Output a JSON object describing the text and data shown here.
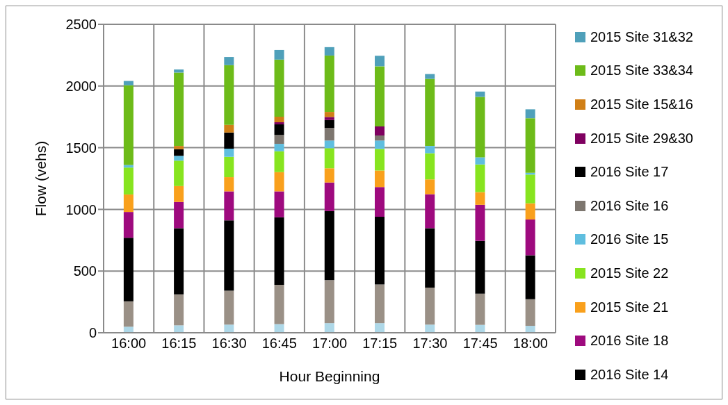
{
  "chart_data": {
    "type": "bar",
    "stacked": true,
    "xlabel": "Hour Beginning",
    "ylabel": "Flow (vehs)",
    "categories": [
      "16:00",
      "16:15",
      "16:30",
      "16:45",
      "17:00",
      "17:15",
      "17:30",
      "17:45",
      "18:00"
    ],
    "ylim": [
      0,
      2500
    ],
    "yticks": [
      0,
      500,
      1000,
      1500,
      2000,
      2500
    ],
    "grid": true,
    "legend": "right",
    "series": [
      {
        "color": "#aed8e8",
        "values": [
          49,
          60,
          66,
          70,
          78,
          78,
          66,
          64,
          56
        ]
      },
      {
        "color": "#9a9086",
        "values": [
          206,
          251,
          274,
          319,
          348,
          313,
          300,
          253,
          216
        ]
      },
      {
        "name": "2016 Site 14",
        "color": "#000000",
        "values": [
          515,
          537,
          571,
          547,
          560,
          549,
          482,
          428,
          356
        ]
      },
      {
        "name": "2016 Site 18",
        "color": "#9e0a7e",
        "values": [
          209,
          212,
          235,
          210,
          232,
          241,
          275,
          292,
          290
        ]
      },
      {
        "name": "2015 Site 21",
        "color": "#f9a01c",
        "values": [
          142,
          129,
          115,
          156,
          115,
          134,
          120,
          103,
          131
        ]
      },
      {
        "name": "2015 Site 22",
        "color": "#87e41f",
        "values": [
          218,
          206,
          165,
          169,
          163,
          175,
          212,
          224,
          233
        ]
      },
      {
        "name": "2016 Site 15",
        "color": "#5fbedf",
        "values": [
          21,
          39,
          66,
          60,
          62,
          68,
          59,
          58,
          14
        ]
      },
      {
        "name": "2016 Site 16",
        "color": "#7d766f",
        "values": [
          0,
          0,
          0,
          72,
          102,
          41,
          0,
          0,
          0
        ]
      },
      {
        "name": "2016 Site 17",
        "color": "#000000",
        "values": [
          0,
          54,
          131,
          86,
          64,
          0,
          0,
          0,
          0
        ]
      },
      {
        "name": "2015 Site 29&30",
        "color": "#7f0060",
        "values": [
          0,
          0,
          0,
          17,
          25,
          74,
          0,
          0,
          0
        ]
      },
      {
        "name": "2015 Site 15&16",
        "color": "#d07f16",
        "values": [
          0,
          26,
          62,
          45,
          41,
          0,
          0,
          0,
          0
        ]
      },
      {
        "name": "2015 Site 33&34",
        "color": "#6dbb19",
        "values": [
          646,
          595,
          484,
          463,
          457,
          487,
          544,
          490,
          443
        ]
      },
      {
        "name": "2015 Site 31&32",
        "color": "#4fa0ba",
        "values": [
          35,
          25,
          66,
          78,
          68,
          85,
          39,
          43,
          72
        ]
      }
    ]
  }
}
